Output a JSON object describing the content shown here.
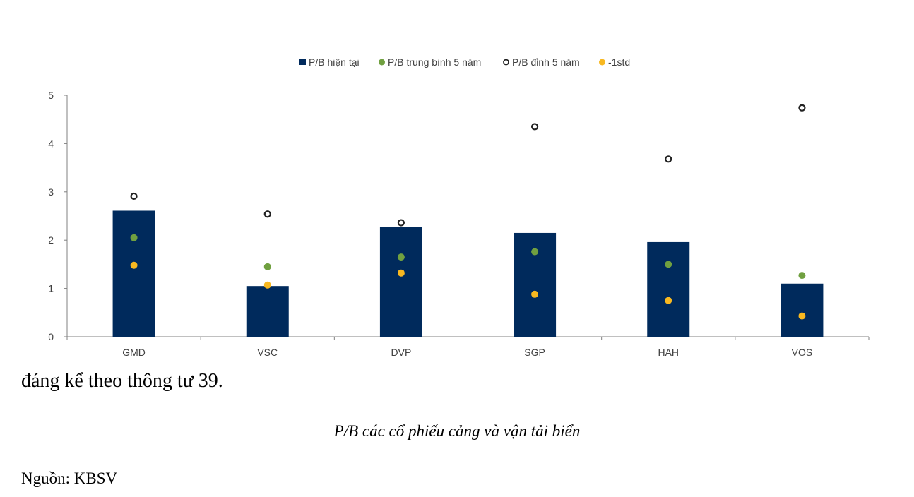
{
  "chart_data": {
    "type": "bar",
    "categories": [
      "GMD",
      "VSC",
      "DVP",
      "SGP",
      "HAH",
      "VOS"
    ],
    "series": [
      {
        "name": "P/B hiện tại",
        "kind": "bar",
        "color": "#002a5c",
        "values": [
          2.61,
          1.05,
          2.27,
          2.15,
          1.96,
          1.1
        ]
      },
      {
        "name": "P/B trung bình 5 năm",
        "kind": "marker",
        "color": "#70a040",
        "values": [
          2.05,
          1.45,
          1.65,
          1.76,
          1.5,
          1.27
        ]
      },
      {
        "name": "P/B đỉnh 5 năm",
        "kind": "hollow-marker",
        "color": "#222222",
        "values": [
          2.91,
          2.54,
          2.36,
          4.35,
          3.68,
          4.74
        ]
      },
      {
        "name": "-1std",
        "kind": "marker",
        "color": "#f8b820",
        "values": [
          1.48,
          1.07,
          1.32,
          0.88,
          0.75,
          0.43
        ]
      }
    ],
    "yticks": [
      0,
      1,
      2,
      3,
      4,
      5
    ],
    "ylim": [
      0,
      5
    ],
    "legend_position": "top-center",
    "grid": false
  },
  "text": {
    "body_line": "đáng kể theo thông tư 39.",
    "caption": "P/B các cổ phiếu cảng và vận tải biển",
    "source": "Nguồn: KBSV"
  }
}
